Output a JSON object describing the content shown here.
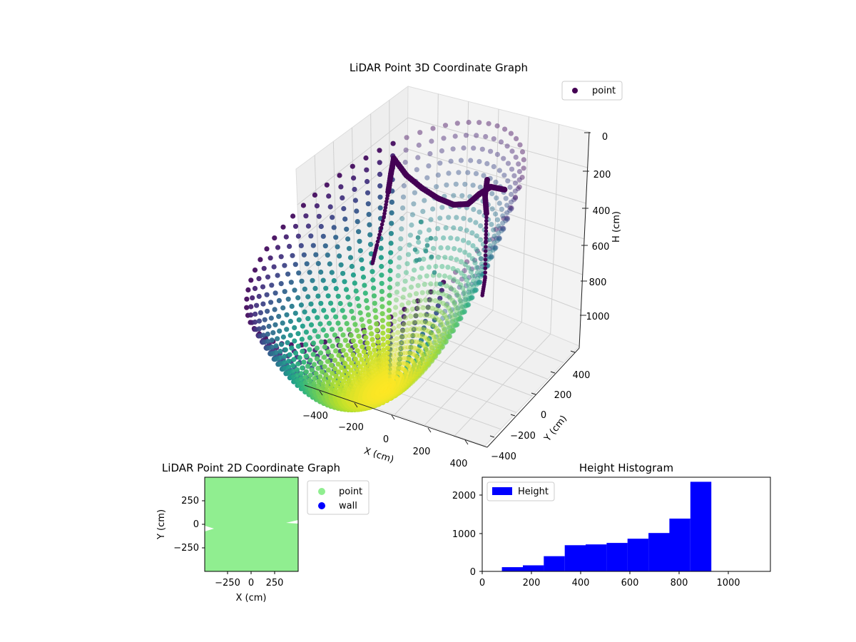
{
  "chart_data": [
    {
      "type": "scatter",
      "title": "LiDAR Point 3D Coordinate Graph",
      "xlabel": "X (cm)",
      "ylabel": "Y (cm)",
      "zlabel": "H (cm)",
      "xticks": [
        "−400",
        "−200",
        "0",
        "200",
        "400"
      ],
      "yticks": [
        "400",
        "200",
        "0",
        "−200",
        "−400"
      ],
      "zticks": [
        "0",
        "200",
        "400",
        "600",
        "800",
        "1000"
      ],
      "xlim": [
        -480,
        480
      ],
      "ylim": [
        -480,
        480
      ],
      "zlim": [
        0,
        1100
      ],
      "zaxis_inverted": true,
      "legend": [
        {
          "label": "point",
          "color": "#440154"
        }
      ],
      "legend_placement": "top-right",
      "colormap": "viridis",
      "grid": true
    },
    {
      "type": "scatter",
      "title": "LiDAR Point 2D Coordinate Graph",
      "xlabel": "X (cm)",
      "ylabel": "Y (cm)",
      "xticks": [
        "−250",
        "0",
        "250"
      ],
      "yticks": [
        "250",
        "0",
        "−250"
      ],
      "xlim": [
        -500,
        500
      ],
      "ylim": [
        -500,
        500
      ],
      "legend": [
        {
          "label": "point",
          "color": "#90ee90"
        },
        {
          "label": "wall",
          "color": "#0000ff"
        }
      ],
      "legend_placement": "outside-right"
    },
    {
      "type": "bar",
      "title": "Height Histogram",
      "xlabel": "",
      "ylabel": "",
      "bin_edges": [
        80,
        165,
        250,
        335,
        420,
        505,
        590,
        675,
        760,
        845,
        930
      ],
      "values": [
        110,
        160,
        400,
        690,
        710,
        750,
        860,
        1010,
        1390,
        2360
      ],
      "xticks": [
        "0",
        "200",
        "400",
        "600",
        "800",
        "1000"
      ],
      "yticks": [
        "0",
        "1000",
        "2000"
      ],
      "xlim": [
        0,
        1170
      ],
      "ylim": [
        0,
        2480
      ],
      "legend": [
        {
          "label": "Height",
          "color": "#0000ff"
        }
      ],
      "legend_placement": "upper-left",
      "bar_color": "#0000ff"
    }
  ]
}
